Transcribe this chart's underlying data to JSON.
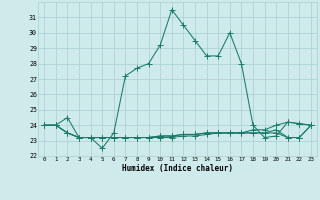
{
  "xlabel": "Humidex (Indice chaleur)",
  "x": [
    0,
    1,
    2,
    3,
    4,
    5,
    6,
    7,
    8,
    9,
    10,
    11,
    12,
    13,
    14,
    15,
    16,
    17,
    18,
    19,
    20,
    21,
    22,
    23
  ],
  "y_main": [
    24.0,
    24.0,
    24.5,
    23.2,
    23.2,
    22.5,
    23.5,
    27.2,
    27.7,
    28.0,
    29.2,
    31.5,
    30.5,
    29.5,
    28.5,
    28.5,
    30.0,
    28.0,
    24.0,
    23.2,
    23.3,
    24.2,
    24.1,
    24.0
  ],
  "y_flat1": [
    24.0,
    24.0,
    23.5,
    23.2,
    23.2,
    23.2,
    23.2,
    23.2,
    23.2,
    23.2,
    23.2,
    23.2,
    23.3,
    23.3,
    23.4,
    23.5,
    23.5,
    23.5,
    23.7,
    23.7,
    24.0,
    24.2,
    24.1,
    24.0
  ],
  "y_flat2": [
    24.0,
    24.0,
    23.5,
    23.2,
    23.2,
    23.2,
    23.2,
    23.2,
    23.2,
    23.2,
    23.3,
    23.3,
    23.4,
    23.4,
    23.5,
    23.5,
    23.5,
    23.5,
    23.5,
    23.5,
    23.7,
    23.2,
    23.2,
    24.0
  ],
  "y_flat3": [
    24.0,
    24.0,
    23.5,
    23.2,
    23.2,
    23.2,
    23.2,
    23.2,
    23.2,
    23.2,
    23.3,
    23.3,
    23.4,
    23.4,
    23.5,
    23.5,
    23.5,
    23.5,
    23.5,
    23.5,
    23.5,
    23.2,
    23.2,
    24.0
  ],
  "line_color": "#1a7a6a",
  "bg_color": "#ceeaea",
  "grid_color": "#a8d0d0",
  "ylim": [
    22,
    32
  ],
  "yticks": [
    22,
    23,
    24,
    25,
    26,
    27,
    28,
    29,
    30,
    31
  ],
  "xtick_labels": [
    "0",
    "1",
    "2",
    "3",
    "4",
    "5",
    "6",
    "7",
    "8",
    "9",
    "10",
    "11",
    "12",
    "13",
    "14",
    "15",
    "16",
    "17",
    "18",
    "19",
    "20",
    "21",
    "22",
    "23"
  ],
  "markersize": 2.0,
  "linewidth": 0.75
}
